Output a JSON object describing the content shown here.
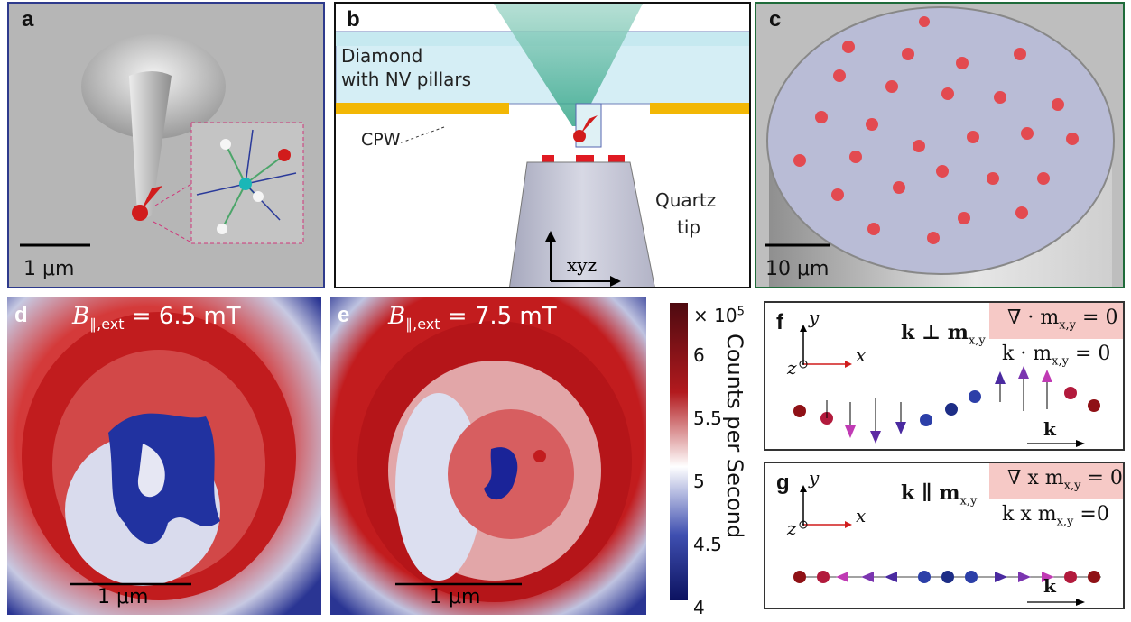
{
  "panels": {
    "a": {
      "label": "a",
      "scale": "1 μm"
    },
    "b": {
      "label": "b",
      "diamond": "Diamond",
      "pillars": "with NV pillars",
      "cpw": "CPW",
      "quartz": "Quartz",
      "tip": "tip",
      "xyz": "xyz"
    },
    "c": {
      "label": "c",
      "scale": "10 μm"
    },
    "d": {
      "label": "d",
      "field_sym": "B",
      "field_sub": "∥,ext",
      "field_val": "= 6.5 mT",
      "scale": "1 μm"
    },
    "e": {
      "label": "e",
      "field_sym": "B",
      "field_sub": "∥,ext",
      "field_val": "= 7.5 mT",
      "scale": "1 μm"
    },
    "colorbar": {
      "multiplier": "× 10",
      "exp": "5",
      "title": "Counts per Second",
      "ticks": [
        "6",
        "5.5",
        "5",
        "4.5",
        "4"
      ]
    },
    "f": {
      "label": "f",
      "ax_y": "y",
      "ax_x": "x",
      "ax_z": "z",
      "relation": "k ⊥ m",
      "rel_sub": "x,y",
      "box_eq": "∇ · m",
      "box_sub": "x,y",
      "box_rhs": "= 0",
      "eq2": "k · m",
      "eq2_sub": "x,y",
      "eq2_rhs": "= 0",
      "k": "k"
    },
    "g": {
      "label": "g",
      "ax_y": "y",
      "ax_x": "x",
      "ax_z": "z",
      "relation": "k ∥ m",
      "rel_sub": "x,y",
      "box_eq": "∇ x m",
      "box_sub": "x,y",
      "box_rhs": "= 0",
      "eq2": "k x m",
      "eq2_sub": "x,y",
      "eq2_rhs": "=0",
      "k": "k"
    }
  },
  "colors": {
    "frame_a": "#2e3a8c",
    "frame_c": "#1f6b3a",
    "red": "#c0141e",
    "blue": "#1a2a8a",
    "cpw": "#f2b705",
    "highlight": "#f6c9c6"
  }
}
